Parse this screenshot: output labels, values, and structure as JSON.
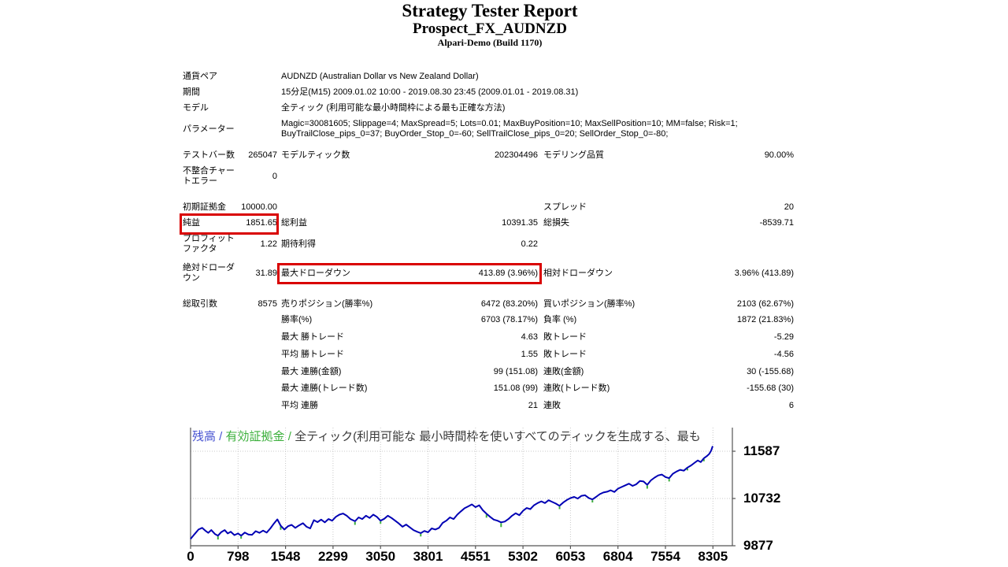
{
  "header": {
    "title": "Strategy Tester Report",
    "symbol": "Prospect_FX_AUDNZD",
    "server": "Alpari-Demo (Build 1170)"
  },
  "table": {
    "rows": [
      {
        "type": "wide",
        "l1": "通貨ペア",
        "value": "AUDNZD (Australian Dollar vs New Zealand Dollar)"
      },
      {
        "type": "wide",
        "l1": "期間",
        "value": "15分足(M15) 2009.01.02 10:00 - 2019.08.30 23:45 (2009.01.01 - 2019.08.31)"
      },
      {
        "type": "wide",
        "l1": "モデル",
        "value": "全ティック (利用可能な最小時間枠による最も正確な方法)"
      },
      {
        "type": "wide",
        "l1": "パラメーター",
        "value": "Magic=30081605; Slippage=4; MaxSpread=5; Lots=0.01; MaxBuyPosition=10; MaxSellPosition=10; MM=false; Risk=1;\nBuyTrailClose_pips_0=37; BuyOrder_Stop_0=-60; SellTrailClose_pips_0=20; SellOrder_Stop_0=-80;"
      },
      {
        "type": "six",
        "gap": 14,
        "l1": "テストバー数",
        "v1": "265047",
        "l2": "モデルティック数",
        "v2": "202304496",
        "l3": "モデリング品質",
        "v3": "90.00%"
      },
      {
        "type": "six",
        "l1": "不整合チャートエラー",
        "v1": "0",
        "l2": "",
        "v2": "",
        "l3": "",
        "v3": ""
      },
      {
        "type": "six",
        "gap": 20,
        "l1": "初期証拠金",
        "v1": "10000.00",
        "l2": "",
        "v2": "",
        "l3": "スプレッド",
        "v3": "20"
      },
      {
        "type": "six",
        "l1": "純益",
        "v1": "1851.65",
        "l2": "総利益",
        "v2": "10391.35",
        "l3": "総損失",
        "v3": "-8539.71",
        "highlight": "v1"
      },
      {
        "type": "six",
        "l1": "プロフィットファクタ",
        "v1": "1.22",
        "l2": "期待利得",
        "v2": "0.22",
        "l3": "",
        "v3": ""
      },
      {
        "type": "six",
        "gap": 11,
        "l1": "絶対ドローダウン",
        "v1": "31.89",
        "l2": "最大ドローダウン",
        "v2": "413.89 (3.96%)",
        "l3": "相対ドローダウン",
        "v3": "3.96% (413.89)",
        "highlight": "v2"
      },
      {
        "type": "six",
        "gap": 20,
        "l1": "総取引数",
        "v1": "8575",
        "l2": "売りポジション(勝率%)",
        "v2": "6472 (83.20%)",
        "l3": "買いポジション(勝率%)",
        "v3": "2103 (62.67%)"
      },
      {
        "type": "six",
        "l1": "",
        "v1": "",
        "l2": "勝率(%)",
        "v2": "6703 (78.17%)",
        "l3": "負率 (%)",
        "v3": "1872 (21.83%)"
      },
      {
        "type": "six",
        "gap": 9,
        "l1": "",
        "v1": "",
        "l2": "最大 勝トレード",
        "v2": "4.63",
        "l3": "敗トレード",
        "v3": "-5.29"
      },
      {
        "type": "six",
        "gap": 9,
        "l1": "",
        "v1": "",
        "l2": "平均 勝トレード",
        "v2": "1.55",
        "l3": "敗トレード",
        "v3": "-4.56"
      },
      {
        "type": "six",
        "gap": 9,
        "l1": "",
        "v1": "",
        "l2": "最大 連勝(金額)",
        "v2": "99 (151.08)",
        "l3": "連敗(金額)",
        "v3": "30 (-155.68)"
      },
      {
        "type": "six",
        "gap": 8,
        "l1": "",
        "v1": "",
        "l2": "最大 連勝(トレード数)",
        "v2": "151.08 (99)",
        "l3": "連敗(トレード数)",
        "v3": "-155.68 (30)"
      },
      {
        "type": "six",
        "gap": 9,
        "l1": "",
        "v1": "",
        "l2": "平均 連勝",
        "v2": "21",
        "l3": "連敗",
        "v3": "6"
      }
    ]
  },
  "chart_data": {
    "type": "line",
    "legend": {
      "balance_label": "残高",
      "separator": " / ",
      "equity_label": "有効証拠金",
      "model_label": "全ティック(利用可能な 最小時間枠を使いすべてのティックを生成する、最も"
    },
    "x_ticks": [
      "0",
      "798",
      "1548",
      "2299",
      "3050",
      "3801",
      "4551",
      "5302",
      "6053",
      "6804",
      "7554",
      "8305"
    ],
    "y_ticks": [
      "11587",
      "10732",
      "9877"
    ],
    "y_tick_values": [
      11587,
      10732,
      9877
    ],
    "xlabel": "",
    "ylabel": "",
    "grid": "dotted",
    "series": [
      {
        "name": "残高(balance)",
        "color": "#0000B4"
      },
      {
        "name": "有効証拠金(equity)",
        "color": "#3BAF3B"
      }
    ],
    "balance_curve": [
      [
        0,
        10000
      ],
      [
        60,
        10080
      ],
      [
        130,
        10170
      ],
      [
        190,
        10200
      ],
      [
        240,
        10150
      ],
      [
        290,
        10110
      ],
      [
        340,
        10160
      ],
      [
        400,
        10090
      ],
      [
        450,
        10060
      ],
      [
        500,
        10120
      ],
      [
        560,
        10160
      ],
      [
        610,
        10100
      ],
      [
        660,
        10130
      ],
      [
        720,
        10070
      ],
      [
        780,
        10100
      ],
      [
        830,
        10060
      ],
      [
        890,
        10115
      ],
      [
        950,
        10080
      ],
      [
        1010,
        10075
      ],
      [
        1070,
        10140
      ],
      [
        1130,
        10110
      ],
      [
        1190,
        10150
      ],
      [
        1250,
        10115
      ],
      [
        1310,
        10190
      ],
      [
        1370,
        10280
      ],
      [
        1425,
        10355
      ],
      [
        1480,
        10240
      ],
      [
        1540,
        10170
      ],
      [
        1600,
        10230
      ],
      [
        1660,
        10255
      ],
      [
        1720,
        10200
      ],
      [
        1780,
        10245
      ],
      [
        1845,
        10285
      ],
      [
        1905,
        10220
      ],
      [
        1965,
        10190
      ],
      [
        2025,
        10340
      ],
      [
        2085,
        10305
      ],
      [
        2145,
        10350
      ],
      [
        2205,
        10300
      ],
      [
        2265,
        10360
      ],
      [
        2325,
        10330
      ],
      [
        2385,
        10400
      ],
      [
        2445,
        10440
      ],
      [
        2505,
        10460
      ],
      [
        2565,
        10420
      ],
      [
        2625,
        10360
      ],
      [
        2700,
        10320
      ],
      [
        2760,
        10390
      ],
      [
        2820,
        10360
      ],
      [
        2880,
        10420
      ],
      [
        2940,
        10380
      ],
      [
        3000,
        10440
      ],
      [
        3060,
        10400
      ],
      [
        3120,
        10330
      ],
      [
        3180,
        10365
      ],
      [
        3240,
        10420
      ],
      [
        3300,
        10380
      ],
      [
        3360,
        10330
      ],
      [
        3420,
        10280
      ],
      [
        3480,
        10220
      ],
      [
        3540,
        10260
      ],
      [
        3600,
        10210
      ],
      [
        3660,
        10160
      ],
      [
        3720,
        10130
      ],
      [
        3780,
        10105
      ],
      [
        3840,
        10145
      ],
      [
        3900,
        10120
      ],
      [
        3960,
        10190
      ],
      [
        4020,
        10170
      ],
      [
        4080,
        10200
      ],
      [
        4140,
        10290
      ],
      [
        4200,
        10330
      ],
      [
        4260,
        10390
      ],
      [
        4320,
        10360
      ],
      [
        4380,
        10440
      ],
      [
        4440,
        10500
      ],
      [
        4500,
        10555
      ],
      [
        4560,
        10590
      ],
      [
        4620,
        10625
      ],
      [
        4680,
        10575
      ],
      [
        4740,
        10610
      ],
      [
        4800,
        10520
      ],
      [
        4860,
        10455
      ],
      [
        4920,
        10400
      ],
      [
        4980,
        10350
      ],
      [
        5040,
        10330
      ],
      [
        5100,
        10300
      ],
      [
        5160,
        10315
      ],
      [
        5220,
        10360
      ],
      [
        5280,
        10420
      ],
      [
        5340,
        10465
      ],
      [
        5400,
        10430
      ],
      [
        5460,
        10510
      ],
      [
        5520,
        10560
      ],
      [
        5580,
        10540
      ],
      [
        5640,
        10610
      ],
      [
        5700,
        10650
      ],
      [
        5760,
        10680
      ],
      [
        5820,
        10650
      ],
      [
        5880,
        10700
      ],
      [
        5940,
        10670
      ],
      [
        6000,
        10640
      ],
      [
        6060,
        10600
      ],
      [
        6120,
        10660
      ],
      [
        6180,
        10705
      ],
      [
        6240,
        10740
      ],
      [
        6300,
        10760
      ],
      [
        6360,
        10730
      ],
      [
        6420,
        10780
      ],
      [
        6480,
        10790
      ],
      [
        6540,
        10740
      ],
      [
        6600,
        10715
      ],
      [
        6660,
        10760
      ],
      [
        6720,
        10810
      ],
      [
        6780,
        10840
      ],
      [
        6840,
        10855
      ],
      [
        6900,
        10880
      ],
      [
        6960,
        10850
      ],
      [
        7020,
        10910
      ],
      [
        7080,
        10940
      ],
      [
        7140,
        10970
      ],
      [
        7200,
        11000
      ],
      [
        7260,
        10960
      ],
      [
        7320,
        10990
      ],
      [
        7380,
        11050
      ],
      [
        7440,
        11040
      ],
      [
        7500,
        10980
      ],
      [
        7560,
        11060
      ],
      [
        7620,
        11110
      ],
      [
        7680,
        11150
      ],
      [
        7740,
        11165
      ],
      [
        7800,
        11120
      ],
      [
        7860,
        11100
      ],
      [
        7920,
        11180
      ],
      [
        7980,
        11220
      ],
      [
        8040,
        11250
      ],
      [
        8100,
        11235
      ],
      [
        8160,
        11290
      ],
      [
        8220,
        11330
      ],
      [
        8280,
        11380
      ],
      [
        8330,
        11420
      ],
      [
        8380,
        11390
      ],
      [
        8430,
        11460
      ],
      [
        8480,
        11500
      ],
      [
        8520,
        11540
      ],
      [
        8550,
        11600
      ],
      [
        8575,
        11680
      ]
    ],
    "equity_spikes": [
      [
        450,
        10060,
        70
      ],
      [
        830,
        10060,
        55
      ],
      [
        1480,
        10240,
        75
      ],
      [
        2700,
        10320,
        65
      ],
      [
        3120,
        10330,
        55
      ],
      [
        3780,
        10105,
        60
      ],
      [
        4860,
        10455,
        70
      ],
      [
        5100,
        10300,
        85
      ],
      [
        6060,
        10600,
        60
      ],
      [
        6600,
        10715,
        55
      ],
      [
        7500,
        10980,
        70
      ],
      [
        7860,
        11100,
        60
      ],
      [
        8160,
        11290,
        50
      ],
      [
        8430,
        11460,
        55
      ]
    ],
    "colors": {
      "balance": "#0000B4",
      "equity": "#3BAF3B",
      "legend_balance": "#4753D1",
      "legend_equity": "#3BAF3B",
      "legend_model": "#3A3A3A",
      "grid": "#C9C9C9",
      "axis": "#555555",
      "highlight_box": "#D90000"
    }
  }
}
